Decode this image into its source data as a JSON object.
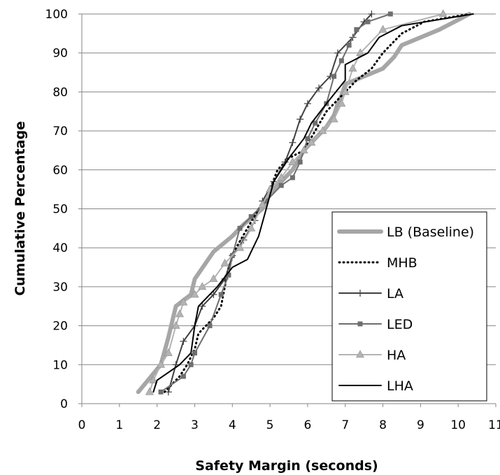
{
  "chart_data": {
    "type": "line",
    "title": "",
    "xlabel": "Safety Margin (seconds)",
    "ylabel": "Cumulative Percentage",
    "xlim": [
      0,
      11
    ],
    "ylim": [
      0,
      100
    ],
    "x_ticks": [
      0,
      1,
      2,
      3,
      4,
      5,
      6,
      7,
      8,
      9,
      10,
      11
    ],
    "y_ticks": [
      0,
      10,
      20,
      30,
      40,
      50,
      60,
      70,
      80,
      90,
      100
    ],
    "grid": "horizontal",
    "legend_position": "bottom-right",
    "series": [
      {
        "name": "LB (Baseline)",
        "color": "#a6a6a6",
        "line_style": "solid",
        "marker": "none",
        "points": [
          [
            1.5,
            3
          ],
          [
            2.1,
            10
          ],
          [
            2.3,
            17
          ],
          [
            2.5,
            25
          ],
          [
            2.9,
            28
          ],
          [
            3.0,
            32
          ],
          [
            3.5,
            39
          ],
          [
            4.0,
            43
          ],
          [
            4.3,
            46
          ],
          [
            4.8,
            50
          ],
          [
            5.0,
            54
          ],
          [
            5.3,
            57
          ],
          [
            5.6,
            60
          ],
          [
            5.9,
            65
          ],
          [
            6.2,
            68
          ],
          [
            6.5,
            71
          ],
          [
            6.7,
            74
          ],
          [
            6.8,
            77
          ],
          [
            6.9,
            79
          ],
          [
            7.0,
            82
          ],
          [
            8.0,
            86
          ],
          [
            8.3,
            89
          ],
          [
            8.5,
            92
          ],
          [
            9.5,
            96
          ],
          [
            10.3,
            100
          ]
        ]
      },
      {
        "name": "MHB",
        "color": "#000000",
        "line_style": "dotted",
        "marker": "none",
        "points": [
          [
            2.2,
            3
          ],
          [
            2.6,
            7
          ],
          [
            2.8,
            10
          ],
          [
            3.0,
            14
          ],
          [
            3.1,
            18
          ],
          [
            3.5,
            22
          ],
          [
            3.7,
            25
          ],
          [
            3.8,
            30
          ],
          [
            3.9,
            35
          ],
          [
            4.1,
            40
          ],
          [
            4.4,
            45
          ],
          [
            4.7,
            50
          ],
          [
            5.0,
            55
          ],
          [
            5.2,
            60
          ],
          [
            5.5,
            63
          ],
          [
            5.9,
            65
          ],
          [
            6.2,
            70
          ],
          [
            6.5,
            75
          ],
          [
            7.0,
            80
          ],
          [
            7.3,
            83
          ],
          [
            7.7,
            86
          ],
          [
            8.0,
            90
          ],
          [
            8.5,
            95
          ],
          [
            9.1,
            98
          ],
          [
            10.3,
            100
          ]
        ]
      },
      {
        "name": "LA",
        "color": "#404040",
        "line_style": "solid",
        "marker": "plus",
        "points": [
          [
            2.3,
            3
          ],
          [
            2.5,
            10
          ],
          [
            2.7,
            16
          ],
          [
            3.0,
            20
          ],
          [
            3.2,
            25
          ],
          [
            3.5,
            28
          ],
          [
            3.8,
            32
          ],
          [
            4.0,
            38
          ],
          [
            4.3,
            42
          ],
          [
            4.6,
            47
          ],
          [
            4.8,
            52
          ],
          [
            5.1,
            57
          ],
          [
            5.4,
            62
          ],
          [
            5.6,
            67
          ],
          [
            5.8,
            73
          ],
          [
            6.0,
            77
          ],
          [
            6.3,
            81
          ],
          [
            6.6,
            84
          ],
          [
            6.8,
            90
          ],
          [
            7.2,
            94
          ],
          [
            7.5,
            98
          ],
          [
            7.7,
            100
          ]
        ]
      },
      {
        "name": "LED",
        "color": "#6e6e6e",
        "line_style": "solid",
        "marker": "square",
        "points": [
          [
            2.1,
            3
          ],
          [
            2.7,
            7
          ],
          [
            2.9,
            10
          ],
          [
            3.0,
            13
          ],
          [
            3.4,
            20
          ],
          [
            3.7,
            28
          ],
          [
            3.9,
            33
          ],
          [
            4.0,
            38
          ],
          [
            4.2,
            45
          ],
          [
            4.5,
            48
          ],
          [
            4.9,
            52
          ],
          [
            5.3,
            56
          ],
          [
            5.6,
            58
          ],
          [
            5.8,
            62
          ],
          [
            6.0,
            68
          ],
          [
            6.2,
            72
          ],
          [
            6.5,
            77
          ],
          [
            6.7,
            84
          ],
          [
            6.9,
            88
          ],
          [
            7.1,
            92
          ],
          [
            7.3,
            96
          ],
          [
            7.6,
            98
          ],
          [
            8.2,
            100
          ]
        ]
      },
      {
        "name": "HA",
        "color": "#b3b3b3",
        "line_style": "solid",
        "marker": "triangle",
        "points": [
          [
            1.8,
            3
          ],
          [
            1.9,
            6
          ],
          [
            2.1,
            10
          ],
          [
            2.3,
            13
          ],
          [
            2.5,
            20
          ],
          [
            2.6,
            23
          ],
          [
            2.7,
            26
          ],
          [
            3.0,
            28
          ],
          [
            3.2,
            30
          ],
          [
            3.5,
            32
          ],
          [
            3.8,
            36
          ],
          [
            4.2,
            40
          ],
          [
            4.5,
            45
          ],
          [
            4.8,
            51
          ],
          [
            5.0,
            55
          ],
          [
            5.3,
            58
          ],
          [
            5.6,
            62
          ],
          [
            5.9,
            65
          ],
          [
            6.1,
            67
          ],
          [
            6.4,
            70
          ],
          [
            6.7,
            73
          ],
          [
            6.9,
            77
          ],
          [
            7.0,
            80
          ],
          [
            7.2,
            86
          ],
          [
            7.4,
            90
          ],
          [
            8.0,
            96
          ],
          [
            9.6,
            100
          ]
        ]
      },
      {
        "name": "LHA",
        "color": "#000000",
        "line_style": "solid",
        "marker": "none",
        "points": [
          [
            1.9,
            3
          ],
          [
            2.0,
            6
          ],
          [
            2.6,
            10
          ],
          [
            2.9,
            13
          ],
          [
            3.0,
            20
          ],
          [
            3.1,
            25
          ],
          [
            3.6,
            30
          ],
          [
            4.0,
            35
          ],
          [
            4.4,
            37
          ],
          [
            4.7,
            43
          ],
          [
            4.9,
            50
          ],
          [
            5.1,
            57
          ],
          [
            5.5,
            63
          ],
          [
            5.9,
            68
          ],
          [
            6.1,
            72
          ],
          [
            6.5,
            77
          ],
          [
            7.0,
            83
          ],
          [
            7.0,
            87
          ],
          [
            7.6,
            90
          ],
          [
            7.9,
            94
          ],
          [
            8.5,
            97
          ],
          [
            10.4,
            100
          ]
        ]
      }
    ]
  }
}
